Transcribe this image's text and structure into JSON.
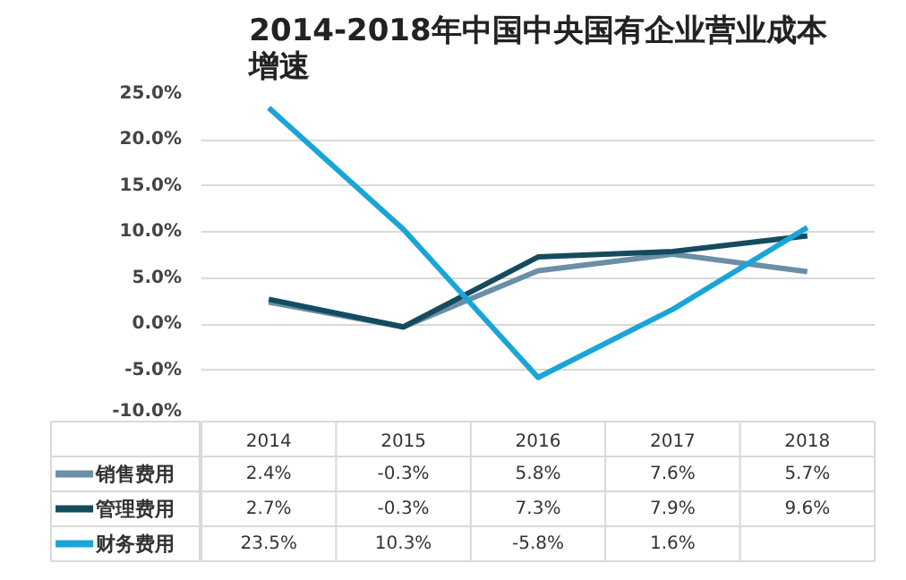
{
  "chart_data": {
    "type": "line",
    "title": "2014-2018年中国中央国有企业营业成本增速",
    "categories": [
      "2014",
      "2015",
      "2016",
      "2017",
      "2018"
    ],
    "series": [
      {
        "name": "销售费用",
        "color": "#6a8fa6",
        "values": [
          2.4,
          -0.3,
          5.8,
          7.6,
          5.7
        ],
        "value_labels": [
          "2.4%",
          "-0.3%",
          "5.8%",
          "7.6%",
          "5.7%"
        ]
      },
      {
        "name": "管理费用",
        "color": "#154b5f",
        "values": [
          2.7,
          -0.3,
          7.3,
          7.9,
          9.6
        ],
        "value_labels": [
          "2.7%",
          "-0.3%",
          "7.3%",
          "7.9%",
          "9.6%"
        ]
      },
      {
        "name": "财务费用",
        "color": "#1aa5d8",
        "values": [
          23.5,
          10.3,
          -5.8,
          1.6,
          10.5
        ],
        "value_labels": [
          "23.5%",
          "10.3%",
          "-5.8%",
          "1.6%",
          null
        ]
      }
    ],
    "ylim": [
      -10,
      25
    ],
    "yticks": [
      {
        "value": -10,
        "label": "-10.0%"
      },
      {
        "value": -5,
        "label": "-5.0%"
      },
      {
        "value": 0,
        "label": "0.0%"
      },
      {
        "value": 5,
        "label": "5.0%"
      },
      {
        "value": 10,
        "label": "10.0%"
      },
      {
        "value": 15,
        "label": "15.0%"
      },
      {
        "value": 20,
        "label": "20.0%"
      },
      {
        "value": 25,
        "label": "25.0%"
      }
    ],
    "grid": "y",
    "legend": "bottom",
    "marker": "none",
    "line_style": "solid"
  }
}
